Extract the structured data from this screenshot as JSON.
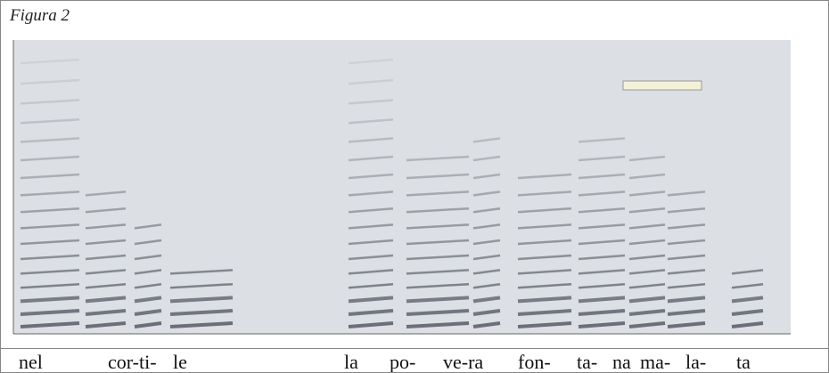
{
  "caption": "Figura 2",
  "syllables": [
    "nel",
    "cor-ti-",
    "le",
    "la",
    "po-",
    "ve-ra",
    "fon-",
    "ta-",
    "na",
    "ma-",
    "la-",
    "ta"
  ]
}
